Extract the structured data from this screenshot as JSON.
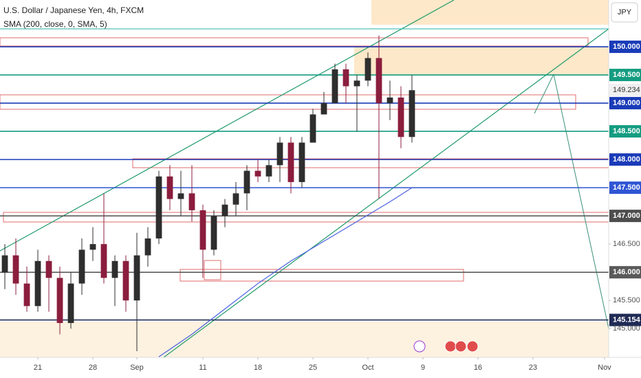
{
  "chart_data": {
    "type": "candlestick",
    "title": "U.S. Dollar / Japanese Yen, 4h, FXCM",
    "indicator": "SMA (200, close, 0, SMA, 5)",
    "currency_button": "JPY",
    "up_color": "#2e2e2e",
    "down_color": "#8b1d3d",
    "candles": {
      "x": [
        -3,
        -2,
        -1,
        0,
        1,
        2,
        3,
        4,
        5,
        6,
        7,
        8,
        9,
        10,
        11,
        12,
        13,
        14,
        15,
        16,
        17,
        18,
        19,
        20,
        21,
        22,
        23,
        24,
        25,
        26,
        27,
        28,
        29,
        30,
        31,
        32,
        33,
        34
      ],
      "open": [
        146.0,
        146.3,
        145.8,
        145.4,
        146.2,
        145.9,
        145.1,
        145.8,
        146.4,
        146.5,
        145.9,
        146.2,
        145.5,
        146.3,
        146.6,
        147.7,
        147.3,
        147.4,
        147.1,
        146.4,
        147.0,
        147.2,
        147.4,
        147.8,
        147.7,
        147.9,
        148.3,
        147.6,
        148.3,
        148.8,
        149.0,
        149.6,
        149.3,
        149.4,
        149.8,
        149.0,
        149.1,
        148.4
      ],
      "high": [
        146.5,
        146.6,
        146.1,
        146.4,
        146.3,
        146.1,
        146.0,
        146.6,
        146.8,
        147.4,
        146.3,
        146.3,
        146.7,
        146.8,
        147.8,
        147.9,
        147.8,
        147.9,
        147.2,
        147.1,
        147.3,
        147.6,
        147.9,
        148.0,
        148.0,
        148.4,
        148.4,
        148.4,
        148.9,
        149.2,
        149.7,
        149.7,
        149.5,
        149.9,
        150.2,
        149.4,
        149.3,
        149.5
      ],
      "low": [
        145.7,
        145.6,
        145.3,
        145.3,
        145.3,
        144.9,
        145.0,
        145.6,
        146.2,
        145.8,
        145.4,
        145.3,
        144.6,
        146.1,
        146.5,
        147.1,
        147.0,
        146.9,
        145.9,
        146.3,
        146.8,
        147.0,
        147.1,
        147.6,
        147.6,
        147.6,
        147.4,
        147.5,
        148.3,
        148.8,
        149.0,
        149.0,
        148.5,
        149.3,
        147.3,
        148.7,
        148.2,
        148.3
      ],
      "close": [
        146.3,
        145.8,
        145.4,
        146.2,
        145.9,
        145.1,
        145.8,
        146.4,
        146.5,
        145.9,
        146.2,
        145.5,
        146.3,
        146.6,
        147.7,
        147.3,
        147.4,
        147.1,
        146.4,
        147.0,
        147.2,
        147.4,
        147.8,
        147.7,
        147.9,
        148.3,
        147.6,
        148.3,
        148.8,
        149.0,
        149.6,
        149.3,
        149.4,
        149.8,
        149.0,
        149.1,
        148.4,
        149.23
      ]
    },
    "sma": {
      "color": "#4a5fe0",
      "x": [
        11,
        14,
        17,
        20,
        23,
        26,
        29,
        32,
        34
      ],
      "values": [
        144.5,
        144.9,
        145.35,
        145.8,
        146.2,
        146.55,
        146.9,
        147.25,
        147.5
      ]
    },
    "last_price": 149.234,
    "xlim": [
      -3.44,
      51.88
    ],
    "ylim": [
      144.49,
      150.83
    ],
    "xticks": [
      {
        "value": 0,
        "label": "21"
      },
      {
        "value": 5,
        "label": "28"
      },
      {
        "value": 9,
        "label": "Sep"
      },
      {
        "value": 15,
        "label": "11"
      },
      {
        "value": 20,
        "label": "18"
      },
      {
        "value": 25,
        "label": "25"
      },
      {
        "value": 30,
        "label": "Oct"
      },
      {
        "value": 35,
        "label": "9"
      },
      {
        "value": 40,
        "label": "16"
      },
      {
        "value": 45,
        "label": "23"
      },
      {
        "value": 51.5,
        "label": "Nov"
      }
    ],
    "yticks": [
      {
        "value": 150,
        "label": "150.000"
      },
      {
        "value": 149.5,
        "label": "149.500"
      },
      {
        "value": 149,
        "label": "149.000"
      },
      {
        "value": 148.5,
        "label": "148.500"
      },
      {
        "value": 148,
        "label": "148.000"
      },
      {
        "value": 147.5,
        "label": "147.500"
      },
      {
        "value": 147,
        "label": "147.000"
      },
      {
        "value": 146.5,
        "label": "146.500"
      },
      {
        "value": 146,
        "label": "146.000"
      },
      {
        "value": 145.5,
        "label": "145.500"
      },
      145.154,
      {
        "value": 145,
        "label": "145.000"
      }
    ],
    "tick_colors": [
      "#1a3bb8",
      "#149c80",
      "#1a3bb8",
      "#149c80",
      "#1a3bb8",
      "#2f55d4",
      "#4d4d4d",
      null,
      "#5a5a5a",
      null,
      "#1f2a55",
      null
    ]
  }
}
